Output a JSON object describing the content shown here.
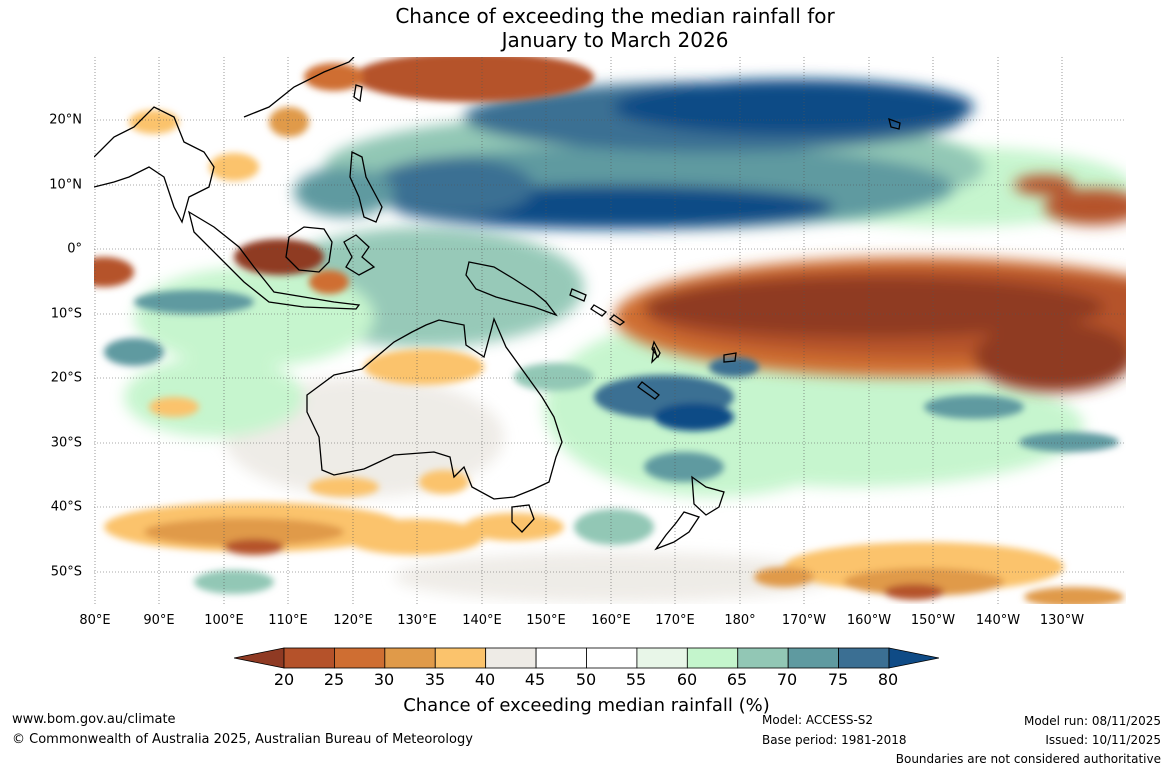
{
  "title": {
    "line1": "Chance of exceeding the median rainfall for",
    "line2": "January to March 2026"
  },
  "map": {
    "lat_labels": [
      "20°N",
      "10°N",
      "0°",
      "10°S",
      "20°S",
      "30°S",
      "40°S",
      "50°S"
    ],
    "lon_labels": [
      "80°E",
      "90°E",
      "100°E",
      "110°E",
      "120°E",
      "130°E",
      "140°E",
      "150°E",
      "160°E",
      "170°E",
      "180°",
      "170°W",
      "160°W",
      "150°W",
      "140°W",
      "130°W"
    ]
  },
  "colorbar": {
    "title": "Chance of exceeding median rainfall (%)",
    "ticks": [
      "20",
      "25",
      "30",
      "35",
      "40",
      "45",
      "50",
      "55",
      "60",
      "65",
      "70",
      "75",
      "80"
    ],
    "colors": [
      "#8f3a23",
      "#b5522a",
      "#cf6e32",
      "#e09a49",
      "#fbc36c",
      "#eeebe6",
      "#ffffff",
      "#ffffff",
      "#e8f6e8",
      "#c4f5cc",
      "#92c7b5",
      "#5f9aa0",
      "#3b6f93",
      "#0f4b86"
    ]
  },
  "footer": {
    "website": "www.bom.gov.au/climate",
    "copyright": "© Commonwealth of Australia 2025, Australian Bureau of Meteorology",
    "model": "Model: ACCESS-S2",
    "base_period": "Base period: 1981-2018",
    "model_run": "Model run: 08/11/2025",
    "issued": "Issued: 10/11/2025",
    "disclaimer": "Boundaries are not considered authoritative"
  }
}
